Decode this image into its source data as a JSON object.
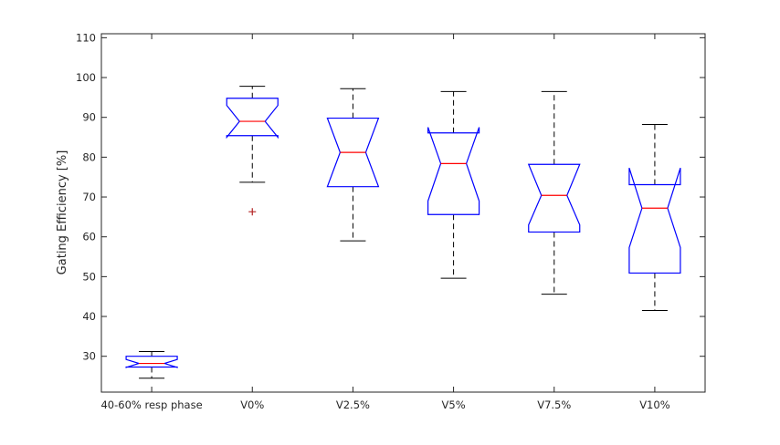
{
  "chart_data": {
    "type": "box",
    "ylabel": "Gating Efficiency [%]",
    "xlabel": "",
    "title": "",
    "ylim": [
      21,
      111
    ],
    "yticks": [
      30,
      40,
      50,
      60,
      70,
      80,
      90,
      100,
      110
    ],
    "notched": true,
    "categories": [
      "40-60% resp phase",
      "V0%",
      "V2.5%",
      "V5%",
      "V7.5%",
      "V10%"
    ],
    "boxes": [
      {
        "label": "40-60% resp phase",
        "whisker_low": 24.5,
        "q1": 27.3,
        "median": 28.2,
        "q3": 30.0,
        "whisker_high": 31.2,
        "notch_low": 27.2,
        "notch_high": 29.2,
        "outliers": []
      },
      {
        "label": "V0%",
        "whisker_low": 73.7,
        "q1": 85.4,
        "median": 89.0,
        "q3": 94.8,
        "whisker_high": 97.8,
        "notch_low": 85.0,
        "notch_high": 93.0,
        "outliers": [
          66.3
        ]
      },
      {
        "label": "V2.5%",
        "whisker_low": 59.0,
        "q1": 72.6,
        "median": 81.2,
        "q3": 89.8,
        "whisker_high": 97.2,
        "notch_low": 72.6,
        "notch_high": 89.8,
        "outliers": []
      },
      {
        "label": "V5%",
        "whisker_low": 49.6,
        "q1": 65.6,
        "median": 78.4,
        "q3": 86.1,
        "whisker_high": 96.5,
        "notch_low": 69.0,
        "notch_high": 87.5,
        "outliers": []
      },
      {
        "label": "V7.5%",
        "whisker_low": 45.6,
        "q1": 61.2,
        "median": 70.4,
        "q3": 78.2,
        "whisker_high": 96.5,
        "notch_low": 63.0,
        "notch_high": 78.2,
        "outliers": []
      },
      {
        "label": "V10%",
        "whisker_low": 41.5,
        "q1": 50.9,
        "median": 67.2,
        "q3": 73.1,
        "whisker_high": 88.2,
        "notch_low": 57.3,
        "notch_high": 77.3,
        "outliers": []
      }
    ],
    "grid": false,
    "legend": "none"
  },
  "colors": {
    "box": "#0000ff",
    "median": "#ff0000",
    "whisker": "#000000",
    "outlier": "#b22222",
    "axis": "#262626"
  }
}
